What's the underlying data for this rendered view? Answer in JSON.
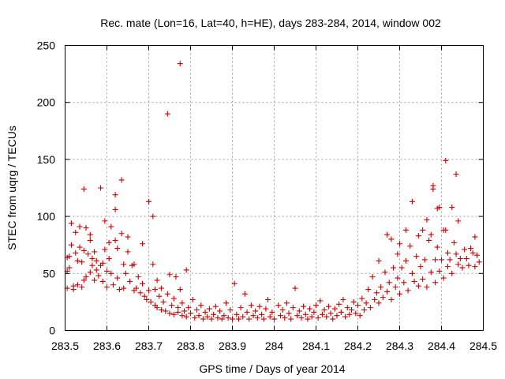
{
  "chart_data": {
    "type": "scatter",
    "title": "Rec. mate (Lon=16, Lat=40, h=HE), days 283-284, 2014, window 002",
    "xlabel": "GPS time / Days of year 2014",
    "ylabel": "STEC from uqrg / TECUs",
    "xlim": [
      283.5,
      284.5
    ],
    "ylim": [
      0,
      250
    ],
    "x_ticks": [
      "283.5",
      "283.6",
      "283.7",
      "283.8",
      "283.9",
      "284",
      "284.1",
      "284.2",
      "284.3",
      "284.4",
      "284.5"
    ],
    "y_ticks": [
      "0",
      "50",
      "100",
      "150",
      "200",
      "250"
    ],
    "grid": true,
    "legend": "none",
    "marker": "plus",
    "color": "#cc0000",
    "points": [
      [
        283.505,
        37
      ],
      [
        283.505,
        52
      ],
      [
        283.505,
        64
      ],
      [
        283.51,
        65
      ],
      [
        283.51,
        55
      ],
      [
        283.515,
        94
      ],
      [
        283.515,
        75
      ],
      [
        283.52,
        36
      ],
      [
        283.52,
        39
      ],
      [
        283.525,
        68
      ],
      [
        283.525,
        86
      ],
      [
        283.53,
        40
      ],
      [
        283.53,
        61
      ],
      [
        283.535,
        91
      ],
      [
        283.535,
        73
      ],
      [
        283.54,
        38
      ],
      [
        283.54,
        60
      ],
      [
        283.545,
        124
      ],
      [
        283.545,
        70
      ],
      [
        283.545,
        44
      ],
      [
        283.55,
        90
      ],
      [
        283.55,
        47
      ],
      [
        283.555,
        67
      ],
      [
        283.56,
        79
      ],
      [
        283.56,
        84
      ],
      [
        283.56,
        51
      ],
      [
        283.565,
        57
      ],
      [
        283.565,
        63
      ],
      [
        283.57,
        44
      ],
      [
        283.57,
        69
      ],
      [
        283.575,
        53
      ],
      [
        283.575,
        61
      ],
      [
        283.58,
        48
      ],
      [
        283.585,
        125
      ],
      [
        283.585,
        57
      ],
      [
        283.59,
        59
      ],
      [
        283.59,
        43
      ],
      [
        283.595,
        71
      ],
      [
        283.595,
        96
      ],
      [
        283.6,
        52
      ],
      [
        283.6,
        38
      ],
      [
        283.605,
        77
      ],
      [
        283.605,
        63
      ],
      [
        283.61,
        91
      ],
      [
        283.61,
        50
      ],
      [
        283.615,
        40
      ],
      [
        283.62,
        119
      ],
      [
        283.62,
        106
      ],
      [
        283.62,
        79
      ],
      [
        283.625,
        72
      ],
      [
        283.625,
        46
      ],
      [
        283.63,
        36
      ],
      [
        283.635,
        132
      ],
      [
        283.635,
        85
      ],
      [
        283.64,
        58
      ],
      [
        283.64,
        37
      ],
      [
        283.645,
        50
      ],
      [
        283.65,
        82
      ],
      [
        283.65,
        69
      ],
      [
        283.655,
        43
      ],
      [
        283.66,
        57
      ],
      [
        283.665,
        58
      ],
      [
        283.665,
        35
      ],
      [
        283.67,
        37
      ],
      [
        283.675,
        47
      ],
      [
        283.68,
        33
      ],
      [
        283.685,
        41
      ],
      [
        283.685,
        76
      ],
      [
        283.69,
        30
      ],
      [
        283.695,
        27
      ],
      [
        283.7,
        113
      ],
      [
        283.7,
        35
      ],
      [
        283.705,
        25
      ],
      [
        283.71,
        100
      ],
      [
        283.71,
        58
      ],
      [
        283.715,
        22
      ],
      [
        283.715,
        36
      ],
      [
        283.72,
        20
      ],
      [
        283.72,
        44
      ],
      [
        283.725,
        30
      ],
      [
        283.73,
        18
      ],
      [
        283.73,
        37
      ],
      [
        283.735,
        25
      ],
      [
        283.74,
        17
      ],
      [
        283.745,
        190
      ],
      [
        283.745,
        32
      ],
      [
        283.75,
        49
      ],
      [
        283.75,
        15
      ],
      [
        283.755,
        22
      ],
      [
        283.76,
        14
      ],
      [
        283.76,
        28
      ],
      [
        283.765,
        47
      ],
      [
        283.77,
        20
      ],
      [
        283.77,
        16
      ],
      [
        283.775,
        234
      ],
      [
        283.775,
        36
      ],
      [
        283.78,
        13
      ],
      [
        283.78,
        24
      ],
      [
        283.785,
        17
      ],
      [
        283.79,
        53
      ],
      [
        283.79,
        12
      ],
      [
        283.795,
        20
      ],
      [
        283.8,
        15
      ],
      [
        283.805,
        27
      ],
      [
        283.81,
        11
      ],
      [
        283.815,
        18
      ],
      [
        283.82,
        13
      ],
      [
        283.825,
        22
      ],
      [
        283.83,
        10
      ],
      [
        283.835,
        16
      ],
      [
        283.84,
        12
      ],
      [
        283.845,
        19
      ],
      [
        283.85,
        10
      ],
      [
        283.855,
        14
      ],
      [
        283.86,
        21
      ],
      [
        283.865,
        11
      ],
      [
        283.87,
        17
      ],
      [
        283.875,
        10
      ],
      [
        283.88,
        13
      ],
      [
        283.885,
        24
      ],
      [
        283.89,
        11
      ],
      [
        283.895,
        18
      ],
      [
        283.9,
        10
      ],
      [
        283.905,
        41
      ],
      [
        283.91,
        14
      ],
      [
        283.915,
        10
      ],
      [
        283.92,
        20
      ],
      [
        283.925,
        12
      ],
      [
        283.93,
        32
      ],
      [
        283.935,
        16
      ],
      [
        283.94,
        10
      ],
      [
        283.945,
        22
      ],
      [
        283.95,
        13
      ],
      [
        283.955,
        17
      ],
      [
        283.96,
        11
      ],
      [
        283.965,
        21
      ],
      [
        283.97,
        14
      ],
      [
        283.975,
        10
      ],
      [
        283.98,
        19
      ],
      [
        283.985,
        27
      ],
      [
        283.99,
        12
      ],
      [
        283.995,
        16
      ],
      [
        284.0,
        10
      ],
      [
        284.01,
        22
      ],
      [
        284.015,
        13
      ],
      [
        284.02,
        18
      ],
      [
        284.025,
        11
      ],
      [
        284.03,
        24
      ],
      [
        284.035,
        15
      ],
      [
        284.04,
        10
      ],
      [
        284.045,
        20
      ],
      [
        284.05,
        37
      ],
      [
        284.055,
        13
      ],
      [
        284.06,
        17
      ],
      [
        284.065,
        11
      ],
      [
        284.07,
        21
      ],
      [
        284.075,
        14
      ],
      [
        284.08,
        10
      ],
      [
        284.085,
        19
      ],
      [
        284.09,
        12
      ],
      [
        284.095,
        16
      ],
      [
        284.1,
        22
      ],
      [
        284.105,
        11
      ],
      [
        284.11,
        26
      ],
      [
        284.115,
        14
      ],
      [
        284.12,
        18
      ],
      [
        284.125,
        12
      ],
      [
        284.13,
        21
      ],
      [
        284.135,
        15
      ],
      [
        284.14,
        10
      ],
      [
        284.145,
        19
      ],
      [
        284.15,
        13
      ],
      [
        284.155,
        23
      ],
      [
        284.16,
        16
      ],
      [
        284.165,
        27
      ],
      [
        284.17,
        12
      ],
      [
        284.175,
        20
      ],
      [
        284.18,
        14
      ],
      [
        284.185,
        18
      ],
      [
        284.19,
        25
      ],
      [
        284.195,
        15
      ],
      [
        284.2,
        22
      ],
      [
        284.205,
        13
      ],
      [
        284.21,
        28
      ],
      [
        284.215,
        18
      ],
      [
        284.22,
        24
      ],
      [
        284.225,
        36
      ],
      [
        284.23,
        20
      ],
      [
        284.235,
        47
      ],
      [
        284.24,
        27
      ],
      [
        284.245,
        33
      ],
      [
        284.25,
        61
      ],
      [
        284.25,
        24
      ],
      [
        284.255,
        38
      ],
      [
        284.26,
        29
      ],
      [
        284.265,
        51
      ],
      [
        284.27,
        84
      ],
      [
        284.27,
        34
      ],
      [
        284.275,
        42
      ],
      [
        284.28,
        80
      ],
      [
        284.28,
        27
      ],
      [
        284.285,
        55
      ],
      [
        284.29,
        38
      ],
      [
        284.295,
        67
      ],
      [
        284.295,
        46
      ],
      [
        284.3,
        76
      ],
      [
        284.3,
        32
      ],
      [
        284.305,
        55
      ],
      [
        284.31,
        42
      ],
      [
        284.315,
        88
      ],
      [
        284.315,
        61
      ],
      [
        284.32,
        35
      ],
      [
        284.325,
        74
      ],
      [
        284.33,
        113
      ],
      [
        284.33,
        50
      ],
      [
        284.335,
        43
      ],
      [
        284.34,
        65
      ],
      [
        284.345,
        83
      ],
      [
        284.345,
        39
      ],
      [
        284.35,
        56
      ],
      [
        284.355,
        88
      ],
      [
        284.355,
        45
      ],
      [
        284.36,
        62
      ],
      [
        284.365,
        97
      ],
      [
        284.365,
        38
      ],
      [
        284.37,
        79
      ],
      [
        284.375,
        84
      ],
      [
        284.375,
        51
      ],
      [
        284.38,
        127
      ],
      [
        284.38,
        124
      ],
      [
        284.385,
        62
      ],
      [
        284.385,
        42
      ],
      [
        284.39,
        107
      ],
      [
        284.39,
        73
      ],
      [
        284.395,
        108
      ],
      [
        284.395,
        52
      ],
      [
        284.4,
        62
      ],
      [
        284.405,
        88
      ],
      [
        284.405,
        46
      ],
      [
        284.41,
        149
      ],
      [
        284.41,
        88
      ],
      [
        284.415,
        68
      ],
      [
        284.415,
        56
      ],
      [
        284.42,
        62
      ],
      [
        284.425,
        108
      ],
      [
        284.425,
        50
      ],
      [
        284.43,
        77
      ],
      [
        284.435,
        137
      ],
      [
        284.435,
        67
      ],
      [
        284.44,
        96
      ],
      [
        284.44,
        58
      ],
      [
        284.445,
        63
      ],
      [
        284.45,
        55
      ],
      [
        284.455,
        71
      ],
      [
        284.46,
        63
      ],
      [
        284.465,
        57
      ],
      [
        284.47,
        72
      ],
      [
        284.475,
        68
      ],
      [
        284.48,
        82
      ],
      [
        284.48,
        56
      ],
      [
        284.485,
        66
      ],
      [
        284.49,
        60
      ]
    ]
  }
}
